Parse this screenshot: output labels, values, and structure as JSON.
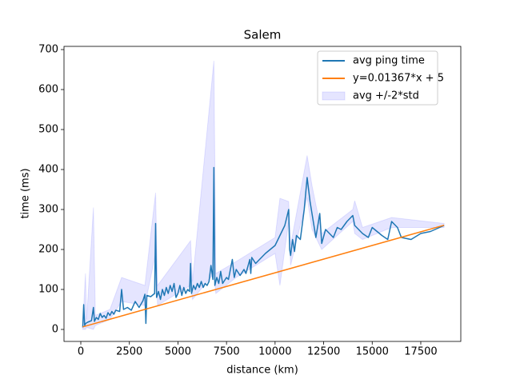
{
  "chart_data": {
    "type": "line",
    "title": "Salem",
    "x_label": "distance (km)",
    "y_label": "time (ms)",
    "xlim": [
      -865,
      19560
    ],
    "ylim": [
      -30,
      708
    ],
    "xticks": [
      0,
      2500,
      5000,
      7500,
      10000,
      12500,
      15000,
      17500
    ],
    "yticks": [
      0,
      100,
      200,
      300,
      400,
      500,
      600,
      700
    ],
    "legend": "upper right",
    "series": [
      {
        "name": "avg ping time",
        "color": "#1f77b4",
        "x": [
          100,
          150,
          200,
          250,
          350,
          450,
          550,
          650,
          700,
          800,
          900,
          1000,
          1100,
          1200,
          1300,
          1400,
          1500,
          1600,
          1700,
          1800,
          2000,
          2100,
          2200,
          2400,
          2600,
          2800,
          3000,
          3200,
          3300,
          3350,
          3400,
          3600,
          3800,
          3850,
          3900,
          4000,
          4100,
          4200,
          4300,
          4400,
          4500,
          4600,
          4700,
          4800,
          4900,
          5000,
          5100,
          5200,
          5300,
          5400,
          5500,
          5600,
          5650,
          5700,
          5800,
          5900,
          6000,
          6100,
          6200,
          6300,
          6400,
          6500,
          6600,
          6700,
          6800,
          6850,
          6900,
          7000,
          7100,
          7200,
          7300,
          7500,
          7600,
          7800,
          7900,
          8000,
          8200,
          8400,
          8500,
          8700,
          8750,
          8800,
          9000,
          9500,
          10000,
          10500,
          10700,
          10750,
          10800,
          10900,
          11000,
          11100,
          11300,
          11500,
          11650,
          11800,
          12000,
          12100,
          12300,
          12400,
          12600,
          12800,
          13000,
          13200,
          13400,
          13700,
          14000,
          14100,
          14500,
          14800,
          15000,
          15500,
          15800,
          16000,
          16300,
          16500,
          17000,
          17500,
          18000,
          18700
        ],
        "values": [
          5,
          62,
          10,
          15,
          18,
          20,
          22,
          55,
          20,
          30,
          25,
          40,
          30,
          35,
          28,
          42,
          35,
          45,
          38,
          48,
          45,
          100,
          50,
          55,
          48,
          70,
          55,
          72,
          88,
          15,
          85,
          82,
          90,
          265,
          80,
          95,
          75,
          100,
          85,
          105,
          90,
          110,
          95,
          115,
          80,
          90,
          110,
          85,
          105,
          90,
          100,
          95,
          165,
          90,
          110,
          100,
          115,
          105,
          120,
          105,
          115,
          110,
          120,
          160,
          125,
          405,
          110,
          130,
          115,
          145,
          115,
          130,
          125,
          175,
          130,
          150,
          135,
          150,
          140,
          175,
          140,
          180,
          165,
          190,
          210,
          260,
          300,
          200,
          185,
          225,
          195,
          235,
          225,
          300,
          380,
          320,
          260,
          230,
          290,
          215,
          250,
          240,
          230,
          255,
          250,
          270,
          285,
          260,
          240,
          230,
          255,
          235,
          225,
          270,
          255,
          230,
          225,
          240,
          245,
          260
        ]
      },
      {
        "name": "y=0.01367*x + 5",
        "color": "#ff7f0e",
        "x": [
          100,
          18700
        ],
        "values": [
          6.4,
          260.6
        ]
      }
    ],
    "band": {
      "name": "avg +/-2*std",
      "color": "#0000ff",
      "x": [
        100,
        240,
        300,
        650,
        750,
        1500,
        2100,
        3300,
        3850,
        3950,
        5650,
        5750,
        6850,
        6950,
        8000,
        10000,
        10250,
        10700,
        10800,
        11650,
        11900,
        12400,
        14000,
        14100,
        14500,
        16000,
        18700
      ],
      "lower": [
        0,
        0,
        5,
        0,
        10,
        25,
        70,
        60,
        190,
        60,
        110,
        75,
        140,
        90,
        130,
        190,
        110,
        270,
        160,
        330,
        250,
        200,
        270,
        240,
        225,
        255,
        255
      ],
      "upper": [
        10,
        140,
        25,
        305,
        35,
        50,
        130,
        110,
        342,
        110,
        222,
        120,
        672,
        140,
        170,
        230,
        328,
        320,
        210,
        435,
        360,
        240,
        300,
        322,
        255,
        280,
        265
      ]
    }
  }
}
